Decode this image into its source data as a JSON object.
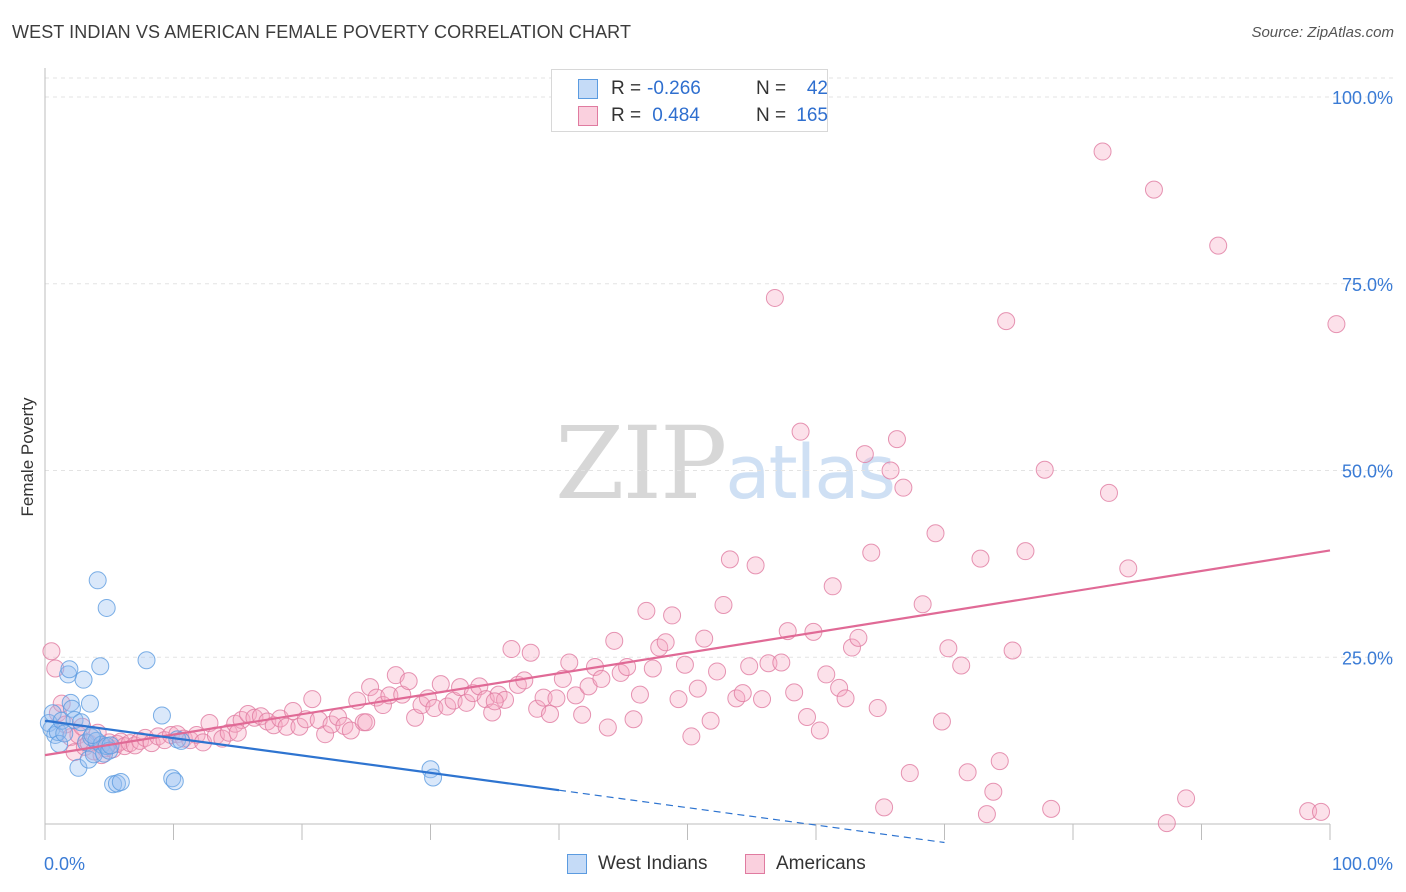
{
  "chart_data": {
    "type": "scatter",
    "title": "WEST INDIAN VS AMERICAN FEMALE POVERTY CORRELATION CHART",
    "source": "Source: ZipAtlas.com",
    "xlabel": "",
    "ylabel": "Female Poverty",
    "xlim": [
      0,
      100
    ],
    "ylim": [
      0,
      100
    ],
    "x_tick_labels": [
      "0.0%",
      "100.0%"
    ],
    "y_tick_labels": [
      "100.0%",
      "75.0%",
      "50.0%",
      "25.0%"
    ],
    "y_ticks": [
      100,
      75,
      50,
      25
    ],
    "watermark": {
      "zip": "ZIP",
      "atlas": "atlas"
    },
    "legend_top": [
      {
        "r_label": "R =",
        "r_value": "-0.266",
        "n_label": "N =",
        "n_value": "42"
      },
      {
        "r_label": "R =",
        "r_value": " 0.484",
        "n_label": "N =",
        "n_value": "165"
      }
    ],
    "series": [
      {
        "name": "West Indians",
        "color": "#5b9be0",
        "fill": "rgba(150,190,240,0.35)",
        "trend": {
          "x0": 0,
          "y0": 16.5,
          "x1": 40,
          "y1": 7.2,
          "dash_to_x": 70,
          "dash_to_y": 0.2
        },
        "points": [
          [
            0.3,
            16.2
          ],
          [
            0.5,
            15.4
          ],
          [
            0.6,
            17.5
          ],
          [
            0.8,
            14.6
          ],
          [
            1.0,
            15.0
          ],
          [
            1.1,
            13.4
          ],
          [
            1.3,
            16.5
          ],
          [
            1.5,
            14.8
          ],
          [
            1.8,
            22.7
          ],
          [
            1.9,
            23.4
          ],
          [
            2.0,
            18.9
          ],
          [
            2.1,
            18.1
          ],
          [
            2.3,
            16.6
          ],
          [
            2.6,
            10.2
          ],
          [
            2.8,
            16.3
          ],
          [
            3.0,
            22.0
          ],
          [
            3.2,
            13.6
          ],
          [
            3.4,
            11.3
          ],
          [
            3.5,
            18.8
          ],
          [
            3.6,
            14.3
          ],
          [
            3.8,
            12.0
          ],
          [
            4.0,
            13.8
          ],
          [
            4.1,
            35.3
          ],
          [
            4.3,
            23.8
          ],
          [
            4.4,
            13.3
          ],
          [
            4.6,
            12.1
          ],
          [
            4.8,
            13.1
          ],
          [
            5.0,
            12.5
          ],
          [
            5.3,
            8.0
          ],
          [
            5.6,
            8.1
          ],
          [
            5.9,
            8.3
          ],
          [
            4.8,
            31.6
          ],
          [
            7.9,
            24.6
          ],
          [
            9.1,
            17.2
          ],
          [
            9.9,
            8.8
          ],
          [
            10.1,
            8.4
          ],
          [
            10.3,
            14.0
          ],
          [
            10.6,
            13.8
          ],
          [
            3.7,
            14.6
          ],
          [
            5.1,
            13.2
          ],
          [
            30.0,
            10.0
          ],
          [
            30.2,
            8.9
          ]
        ]
      },
      {
        "name": "Americans",
        "color": "#e07ba0",
        "fill": "rgba(245,170,195,0.35)",
        "trend": {
          "x0": 0,
          "y0": 11.9,
          "x1": 100,
          "y1": 39.3
        },
        "points": [
          [
            0.5,
            25.8
          ],
          [
            0.8,
            23.5
          ],
          [
            1.0,
            17.5
          ],
          [
            1.3,
            18.8
          ],
          [
            1.6,
            16.0
          ],
          [
            2.0,
            14.3
          ],
          [
            2.3,
            12.3
          ],
          [
            2.6,
            14.6
          ],
          [
            2.9,
            15.7
          ],
          [
            3.1,
            13.0
          ],
          [
            3.4,
            13.5
          ],
          [
            3.8,
            12.4
          ],
          [
            4.1,
            14.9
          ],
          [
            4.4,
            11.9
          ],
          [
            4.7,
            12.8
          ],
          [
            5.0,
            13.6
          ],
          [
            5.3,
            12.7
          ],
          [
            5.6,
            13.4
          ],
          [
            5.9,
            13.7
          ],
          [
            6.2,
            13.1
          ],
          [
            6.6,
            13.5
          ],
          [
            7.0,
            13.2
          ],
          [
            7.4,
            13.8
          ],
          [
            7.8,
            14.2
          ],
          [
            8.3,
            13.5
          ],
          [
            8.8,
            14.4
          ],
          [
            9.3,
            13.9
          ],
          [
            9.8,
            14.6
          ],
          [
            10.3,
            14.7
          ],
          [
            10.8,
            14.1
          ],
          [
            11.3,
            13.9
          ],
          [
            11.8,
            14.6
          ],
          [
            12.3,
            13.6
          ],
          [
            12.8,
            16.2
          ],
          [
            13.3,
            14.5
          ],
          [
            13.8,
            14.1
          ],
          [
            14.3,
            14.9
          ],
          [
            14.8,
            16.1
          ],
          [
            15.3,
            16.6
          ],
          [
            15.8,
            17.4
          ],
          [
            16.3,
            16.9
          ],
          [
            16.8,
            17.1
          ],
          [
            17.3,
            16.4
          ],
          [
            17.8,
            15.9
          ],
          [
            18.3,
            16.8
          ],
          [
            18.8,
            15.7
          ],
          [
            19.3,
            17.8
          ],
          [
            19.8,
            15.7
          ],
          [
            20.3,
            16.7
          ],
          [
            20.8,
            19.4
          ],
          [
            21.3,
            16.6
          ],
          [
            21.8,
            14.7
          ],
          [
            22.3,
            16.0
          ],
          [
            22.8,
            17.0
          ],
          [
            23.3,
            15.8
          ],
          [
            23.8,
            15.2
          ],
          [
            24.3,
            19.2
          ],
          [
            24.8,
            16.3
          ],
          [
            25.3,
            21.0
          ],
          [
            25.8,
            19.6
          ],
          [
            26.3,
            18.6
          ],
          [
            26.8,
            19.9
          ],
          [
            27.3,
            22.6
          ],
          [
            27.8,
            20.0
          ],
          [
            28.3,
            21.8
          ],
          [
            28.8,
            16.9
          ],
          [
            29.3,
            18.6
          ],
          [
            29.8,
            19.5
          ],
          [
            30.3,
            18.2
          ],
          [
            30.8,
            21.4
          ],
          [
            31.3,
            18.4
          ],
          [
            31.8,
            19.2
          ],
          [
            32.3,
            21.0
          ],
          [
            32.8,
            18.9
          ],
          [
            33.3,
            20.2
          ],
          [
            33.8,
            21.1
          ],
          [
            34.3,
            19.4
          ],
          [
            34.8,
            17.6
          ],
          [
            35.3,
            20.0
          ],
          [
            35.8,
            19.3
          ],
          [
            36.3,
            26.1
          ],
          [
            36.8,
            21.3
          ],
          [
            37.3,
            21.9
          ],
          [
            37.8,
            25.6
          ],
          [
            38.3,
            18.1
          ],
          [
            38.8,
            19.6
          ],
          [
            39.3,
            17.4
          ],
          [
            39.8,
            19.5
          ],
          [
            40.3,
            22.1
          ],
          [
            40.8,
            24.3
          ],
          [
            41.3,
            19.9
          ],
          [
            41.8,
            17.3
          ],
          [
            42.3,
            21.1
          ],
          [
            42.8,
            23.7
          ],
          [
            43.3,
            22.1
          ],
          [
            43.8,
            15.6
          ],
          [
            44.3,
            27.2
          ],
          [
            44.8,
            22.9
          ],
          [
            45.3,
            23.7
          ],
          [
            45.8,
            16.7
          ],
          [
            46.3,
            20.0
          ],
          [
            46.8,
            31.2
          ],
          [
            47.3,
            23.5
          ],
          [
            47.8,
            26.3
          ],
          [
            48.3,
            27.0
          ],
          [
            48.8,
            30.6
          ],
          [
            49.3,
            19.4
          ],
          [
            49.8,
            24.0
          ],
          [
            50.3,
            14.4
          ],
          [
            50.8,
            20.8
          ],
          [
            51.3,
            27.5
          ],
          [
            51.8,
            16.5
          ],
          [
            52.3,
            23.1
          ],
          [
            52.8,
            32.0
          ],
          [
            53.3,
            38.1
          ],
          [
            53.8,
            19.5
          ],
          [
            54.3,
            20.2
          ],
          [
            54.8,
            23.8
          ],
          [
            55.3,
            37.3
          ],
          [
            55.8,
            19.4
          ],
          [
            56.3,
            24.2
          ],
          [
            56.8,
            73.1
          ],
          [
            57.3,
            24.3
          ],
          [
            57.8,
            28.5
          ],
          [
            58.3,
            20.3
          ],
          [
            58.8,
            55.2
          ],
          [
            59.3,
            17.0
          ],
          [
            59.8,
            28.4
          ],
          [
            60.3,
            15.2
          ],
          [
            60.8,
            22.7
          ],
          [
            61.3,
            34.5
          ],
          [
            61.8,
            20.9
          ],
          [
            62.3,
            19.5
          ],
          [
            62.8,
            26.3
          ],
          [
            63.3,
            27.6
          ],
          [
            63.8,
            52.2
          ],
          [
            64.3,
            39.0
          ],
          [
            64.8,
            18.2
          ],
          [
            65.3,
            4.9
          ],
          [
            65.8,
            50.0
          ],
          [
            66.3,
            54.2
          ],
          [
            66.8,
            47.7
          ],
          [
            67.3,
            9.5
          ],
          [
            68.3,
            32.1
          ],
          [
            69.3,
            41.6
          ],
          [
            69.8,
            16.4
          ],
          [
            70.3,
            26.2
          ],
          [
            71.3,
            23.9
          ],
          [
            71.8,
            9.6
          ],
          [
            72.8,
            38.2
          ],
          [
            73.3,
            4.0
          ],
          [
            73.8,
            7.0
          ],
          [
            74.3,
            11.1
          ],
          [
            74.8,
            70.0
          ],
          [
            75.3,
            25.9
          ],
          [
            76.3,
            39.2
          ],
          [
            77.8,
            50.1
          ],
          [
            78.3,
            4.7
          ],
          [
            82.3,
            92.7
          ],
          [
            82.8,
            47.0
          ],
          [
            84.3,
            36.9
          ],
          [
            86.3,
            87.6
          ],
          [
            87.3,
            2.8
          ],
          [
            88.8,
            6.1
          ],
          [
            91.3,
            80.1
          ],
          [
            98.3,
            4.4
          ],
          [
            99.3,
            4.3
          ],
          [
            100.5,
            69.6
          ],
          [
            15.0,
            14.9
          ],
          [
            25.0,
            16.3
          ],
          [
            35.0,
            19.1
          ]
        ]
      }
    ]
  }
}
